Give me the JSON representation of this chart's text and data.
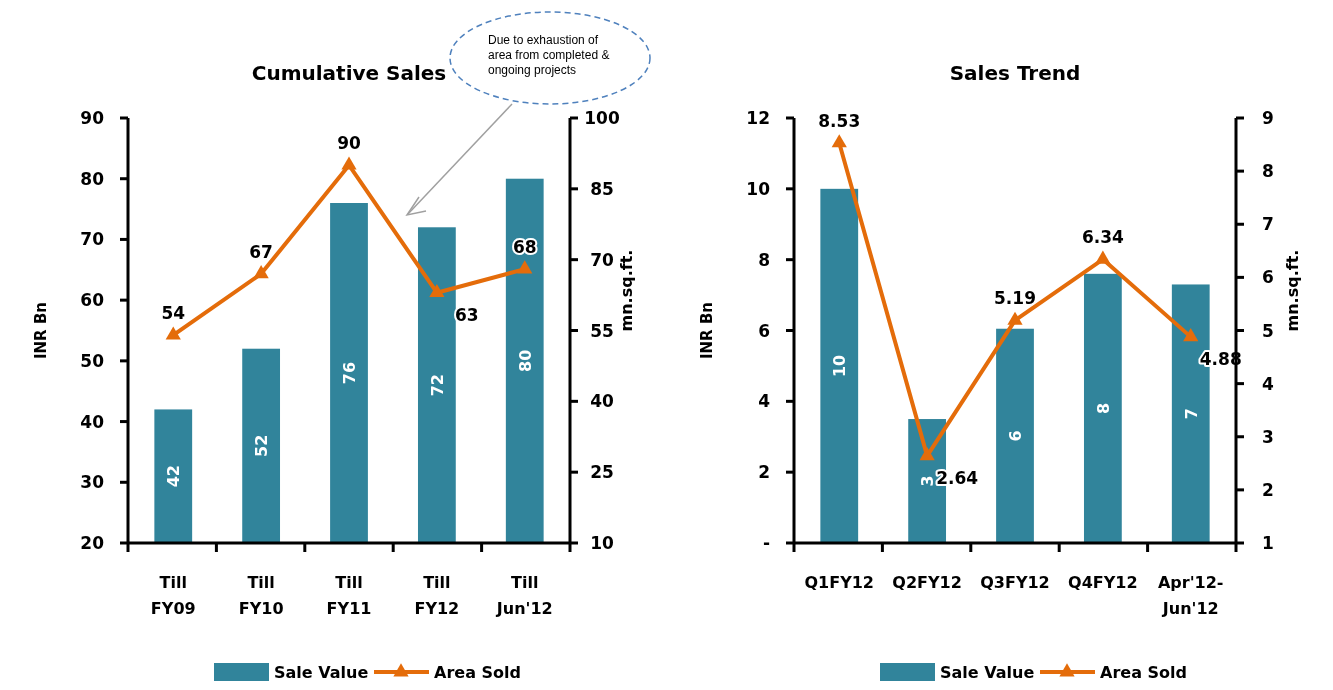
{
  "chart_data": [
    {
      "type": "bar",
      "title": "Cumulative Sales",
      "ylabel": "INR Bn",
      "y2label": "mn.sq.ft.",
      "categories": [
        "Till FY09",
        "Till FY10",
        "Till FY11",
        "Till FY12",
        "Till Jun'12"
      ],
      "series": [
        {
          "name": "Sale Value",
          "color": "#31849b",
          "values": [
            42,
            52,
            76,
            72,
            80
          ],
          "value_labels": [
            "42",
            "52",
            "76",
            "72",
            "80"
          ]
        },
        {
          "name": "Area Sold",
          "type": "line",
          "axis": "y2",
          "color": "#e46c0a",
          "marker": "triangle",
          "values": [
            54,
            67,
            90,
            63,
            68
          ],
          "value_labels": [
            "54",
            "67",
            "90",
            "63",
            "68"
          ]
        }
      ],
      "ylim": [
        20,
        90
      ],
      "yticks": [
        20,
        30,
        40,
        50,
        60,
        70,
        80,
        90
      ],
      "y2lim": [
        10,
        100
      ],
      "y2ticks": [
        10,
        25,
        40,
        55,
        70,
        85,
        100
      ],
      "legend": "bottom",
      "annotations": [
        "Due to exhaustion of area from completed & ongoing projects"
      ]
    },
    {
      "type": "bar",
      "title": "Sales Trend",
      "ylabel": "INR Bn",
      "y2label": "mn.sq.ft.",
      "categories": [
        "Q1FY12",
        "Q2FY12",
        "Q3FY12",
        "Q4FY12",
        "Apr'12-Jun'12"
      ],
      "series": [
        {
          "name": "Sale Value",
          "color": "#31849b",
          "values": [
            10,
            3.5,
            6.05,
            7.6,
            7.3
          ],
          "value_labels": [
            "10",
            "3",
            "6",
            "8",
            "7"
          ]
        },
        {
          "name": "Area Sold",
          "type": "line",
          "axis": "y2",
          "color": "#e46c0a",
          "marker": "triangle",
          "values": [
            8.53,
            2.64,
            5.19,
            6.34,
            4.88
          ],
          "value_labels": [
            "8.53",
            "2.64",
            "5.19",
            "6.34",
            "4.88"
          ]
        }
      ],
      "ylim": [
        0,
        12
      ],
      "yticks": [
        {
          "value": 0,
          "label": "-"
        },
        2,
        4,
        6,
        8,
        10,
        12
      ],
      "y2lim": [
        1,
        9
      ],
      "y2ticks": [
        1,
        2,
        3,
        4,
        5,
        6,
        7,
        8,
        9
      ],
      "legend": "bottom"
    }
  ]
}
